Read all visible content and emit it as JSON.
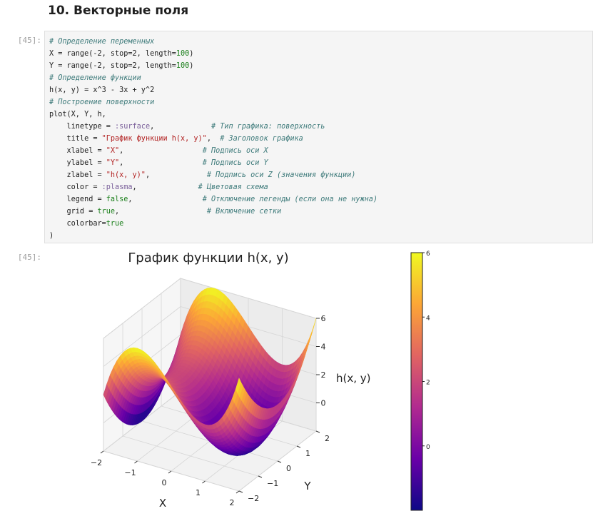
{
  "notebook": {
    "heading": "10. Векторные поля",
    "input_prompt": "[45]:",
    "output_prompt": "[45]:",
    "code": [
      [
        {
          "t": "# Определение переменных",
          "k": "c"
        }
      ],
      [
        {
          "t": "X = range(-2, stop=2, length=",
          "k": ""
        },
        {
          "t": "100",
          "k": "n"
        },
        {
          "t": ")",
          "k": ""
        }
      ],
      [
        {
          "t": "Y = range(-2, stop=2, length=",
          "k": ""
        },
        {
          "t": "100",
          "k": "n"
        },
        {
          "t": ")",
          "k": ""
        }
      ],
      [
        {
          "t": "# Определение функции",
          "k": "c"
        }
      ],
      [
        {
          "t": "h(x, y) = x^3 - 3x + y^2",
          "k": ""
        }
      ],
      [
        {
          "t": "# Построение поверхности",
          "k": "c"
        }
      ],
      [
        {
          "t": "plot(X, Y, h,",
          "k": ""
        }
      ],
      [
        {
          "t": "    linetype = ",
          "k": ""
        },
        {
          "t": ":surface",
          "k": "sym"
        },
        {
          "t": ",             ",
          "k": ""
        },
        {
          "t": "# Тип графика: поверхность",
          "k": "c"
        }
      ],
      [
        {
          "t": "    title = ",
          "k": ""
        },
        {
          "t": "\"График функции h(x, y)\"",
          "k": "s"
        },
        {
          "t": ",  ",
          "k": ""
        },
        {
          "t": "# Заголовок графика",
          "k": "c"
        }
      ],
      [
        {
          "t": "    xlabel = ",
          "k": ""
        },
        {
          "t": "\"X\"",
          "k": "s"
        },
        {
          "t": ",                  ",
          "k": ""
        },
        {
          "t": "# Подпись оси X",
          "k": "c"
        }
      ],
      [
        {
          "t": "    ylabel = ",
          "k": ""
        },
        {
          "t": "\"Y\"",
          "k": "s"
        },
        {
          "t": ",                  ",
          "k": ""
        },
        {
          "t": "# Подпись оси Y",
          "k": "c"
        }
      ],
      [
        {
          "t": "    zlabel = ",
          "k": ""
        },
        {
          "t": "\"h(x, y)\"",
          "k": "s"
        },
        {
          "t": ",             ",
          "k": ""
        },
        {
          "t": "# Подпись оси Z (значения функции)",
          "k": "c"
        }
      ],
      [
        {
          "t": "    color = ",
          "k": ""
        },
        {
          "t": ":plasma",
          "k": "sym"
        },
        {
          "t": ",              ",
          "k": ""
        },
        {
          "t": "# Цветовая схема",
          "k": "c"
        }
      ],
      [
        {
          "t": "    legend = ",
          "k": ""
        },
        {
          "t": "false",
          "k": "n"
        },
        {
          "t": ",                ",
          "k": ""
        },
        {
          "t": "# Отключение легенды (если она не нужна)",
          "k": "c"
        }
      ],
      [
        {
          "t": "    grid = ",
          "k": ""
        },
        {
          "t": "true",
          "k": "n"
        },
        {
          "t": ",                    ",
          "k": ""
        },
        {
          "t": "# Включение сетки",
          "k": "c"
        }
      ],
      [
        {
          "t": "    colorbar=",
          "k": ""
        },
        {
          "t": "true",
          "k": "n"
        }
      ],
      [
        {
          "t": ")",
          "k": ""
        }
      ]
    ]
  },
  "chart_data": {
    "type": "surface",
    "title": "График функции h(x, y)",
    "xlabel": "X",
    "ylabel": "Y",
    "zlabel": "h(x, y)",
    "function": "h(x, y) = x^3 - 3x + y^2",
    "x_range": [
      -2,
      2
    ],
    "y_range": [
      -2,
      2
    ],
    "z_range": [
      -2,
      6
    ],
    "x_ticks": [
      "−2",
      "−1",
      "0",
      "1",
      "2"
    ],
    "y_ticks": [
      "−2",
      "−1",
      "0",
      "1",
      "2"
    ],
    "z_ticks": [
      "0",
      "2",
      "4",
      "6"
    ],
    "colormap": "plasma",
    "colorbar": {
      "min": -2,
      "max": 6,
      "ticks": [
        "0",
        "2",
        "4",
        "6"
      ]
    },
    "legend": false,
    "grid": true
  }
}
